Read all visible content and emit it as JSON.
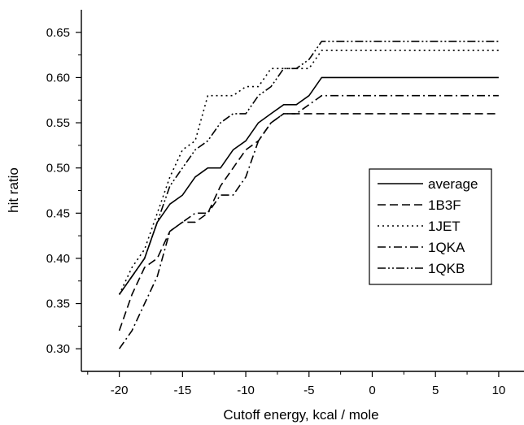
{
  "chart_data": {
    "type": "line",
    "xlabel": "Cutoff energy, kcal / mole",
    "ylabel": "hit ratio",
    "xlim": [
      -23,
      12
    ],
    "ylim": [
      0.275,
      0.675
    ],
    "xticks": [
      -20,
      -15,
      -10,
      -5,
      0,
      5,
      10
    ],
    "yticks": [
      0.3,
      0.35,
      0.4,
      0.45,
      0.5,
      0.55,
      0.6,
      0.65
    ],
    "xtick_labels": [
      "-20",
      "-15",
      "-10",
      "-5",
      "0",
      "5",
      "10"
    ],
    "ytick_labels": [
      "0.30",
      "0.35",
      "0.40",
      "0.45",
      "0.50",
      "0.55",
      "0.60",
      "0.65"
    ],
    "grid": false,
    "legend_position": "right",
    "series": [
      {
        "name": "average",
        "dash": "solid",
        "x": [
          -20,
          -19,
          -18,
          -17,
          -16,
          -15,
          -14,
          -13,
          -12,
          -11,
          -10,
          -9,
          -8,
          -7,
          -6,
          -5,
          -4,
          10
        ],
        "y": [
          0.36,
          0.38,
          0.4,
          0.44,
          0.46,
          0.47,
          0.49,
          0.5,
          0.5,
          0.52,
          0.53,
          0.55,
          0.56,
          0.57,
          0.57,
          0.58,
          0.6,
          0.6
        ]
      },
      {
        "name": "1B3F",
        "dash": "dash",
        "x": [
          -20,
          -19,
          -18,
          -17,
          -16,
          -15,
          -14,
          -13,
          -12,
          -11,
          -10,
          -9,
          -8,
          -7,
          -6,
          -5,
          -4,
          10
        ],
        "y": [
          0.32,
          0.36,
          0.39,
          0.4,
          0.43,
          0.44,
          0.44,
          0.45,
          0.48,
          0.5,
          0.52,
          0.53,
          0.55,
          0.56,
          0.56,
          0.56,
          0.56,
          0.56
        ]
      },
      {
        "name": "1JET",
        "dash": "dot",
        "x": [
          -20,
          -19,
          -18,
          -17,
          -16,
          -15,
          -14,
          -13,
          -12,
          -11,
          -10,
          -9,
          -8,
          -7,
          -6,
          -5,
          -4,
          10
        ],
        "y": [
          0.36,
          0.39,
          0.41,
          0.45,
          0.49,
          0.52,
          0.53,
          0.58,
          0.58,
          0.58,
          0.59,
          0.59,
          0.61,
          0.61,
          0.61,
          0.61,
          0.63,
          0.63
        ]
      },
      {
        "name": "1QKA",
        "dash": "dashdot",
        "x": [
          -20,
          -19,
          -18,
          -17,
          -16,
          -15,
          -14,
          -13,
          -12,
          -11,
          -10,
          -9,
          -8,
          -7,
          -6,
          -5,
          -4,
          10
        ],
        "y": [
          0.3,
          0.32,
          0.35,
          0.38,
          0.43,
          0.44,
          0.45,
          0.45,
          0.47,
          0.47,
          0.49,
          0.53,
          0.55,
          0.56,
          0.56,
          0.57,
          0.58,
          0.58
        ]
      },
      {
        "name": "1QKB",
        "dash": "dashdotdot",
        "x": [
          -20,
          -19,
          -18,
          -17,
          -16,
          -15,
          -14,
          -13,
          -12,
          -11,
          -10,
          -9,
          -8,
          -7,
          -6,
          -5,
          -4,
          10
        ],
        "y": [
          0.36,
          0.38,
          0.4,
          0.44,
          0.48,
          0.5,
          0.52,
          0.53,
          0.55,
          0.56,
          0.56,
          0.58,
          0.59,
          0.61,
          0.61,
          0.62,
          0.64,
          0.64
        ]
      }
    ]
  }
}
